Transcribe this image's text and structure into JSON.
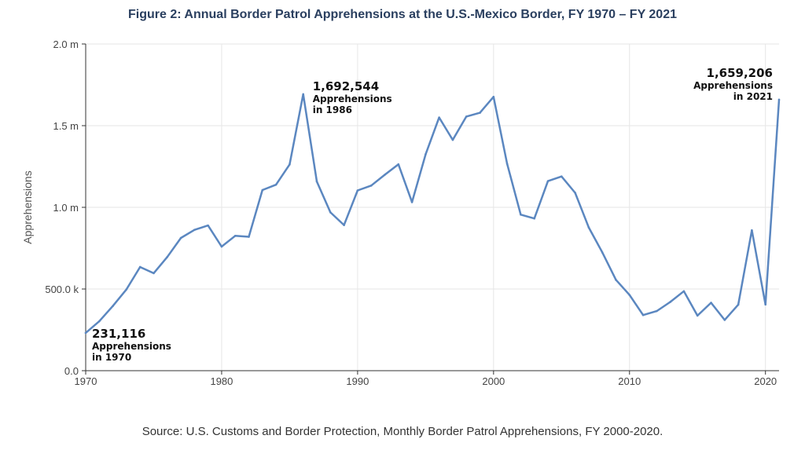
{
  "title": "Figure 2: Annual Border Patrol Apprehensions at the U.S.-Mexico Border, FY 1970 – FY 2021",
  "source": "Source: U.S. Customs and Border Protection, Monthly Border Patrol Apprehensions, FY 2000-2020.",
  "colors": {
    "line": "#5b87c0",
    "grid": "#e6e6e6",
    "axis": "#333333"
  },
  "chart_data": {
    "type": "line",
    "title": "Figure 2: Annual Border Patrol Apprehensions at the U.S.-Mexico Border, FY 1970 – FY 2021",
    "xlabel": "",
    "ylabel": "Apprehensions",
    "xlim": [
      1970,
      2021
    ],
    "ylim": [
      0,
      2000000
    ],
    "grid": true,
    "x_ticks": [
      1970,
      1980,
      1990,
      2000,
      2010,
      2020
    ],
    "x_tick_labels": [
      "1970",
      "1980",
      "1990",
      "2000",
      "2010",
      "2020"
    ],
    "y_ticks": [
      0,
      500000,
      1000000,
      1500000,
      2000000
    ],
    "y_tick_labels": [
      "0.0",
      "500.0 k",
      "1.0 m",
      "1.5 m",
      "2.0 m"
    ],
    "series": [
      {
        "x": [
          1970,
          1971,
          1972,
          1973,
          1974,
          1975,
          1976,
          1977,
          1978,
          1979,
          1980,
          1981,
          1982,
          1983,
          1984,
          1985,
          1986,
          1987,
          1988,
          1989,
          1990,
          1991,
          1992,
          1993,
          1994,
          1995,
          1996,
          1997,
          1998,
          1999,
          2000,
          2001,
          2002,
          2003,
          2004,
          2005,
          2006,
          2007,
          2008,
          2009,
          2010,
          2011,
          2012,
          2013,
          2014,
          2015,
          2016,
          2017,
          2018,
          2019,
          2020,
          2021
        ],
        "values": [
          231116,
          302517,
          396006,
          498123,
          634777,
          596796,
          696039,
          812541,
          862217,
          888729,
          759420,
          825290,
          819919,
          1105670,
          1138566,
          1262435,
          1692544,
          1158030,
          969214,
          891147,
          1103353,
          1132933,
          1199560,
          1263490,
          1031668,
          1324202,
          1549876,
          1412953,
          1555776,
          1579010,
          1676438,
          1266214,
          955310,
          931557,
          1160395,
          1189075,
          1089092,
          876704,
          723825,
          556041,
          463382,
          340252,
          364768,
          420789,
          486651,
          337117,
          415816,
          310531,
          404142,
          859501,
          405036,
          1659206
        ]
      }
    ],
    "annotations": [
      {
        "x": 1970,
        "value": "231,116",
        "lines": [
          "Apprehensions",
          "in 1970"
        ]
      },
      {
        "x": 1986,
        "value": "1,692,544",
        "lines": [
          "Apprehensions",
          "in 1986"
        ]
      },
      {
        "x": 2021,
        "value": "1,659,206",
        "lines": [
          "Apprehensions",
          "in 2021"
        ]
      }
    ]
  }
}
